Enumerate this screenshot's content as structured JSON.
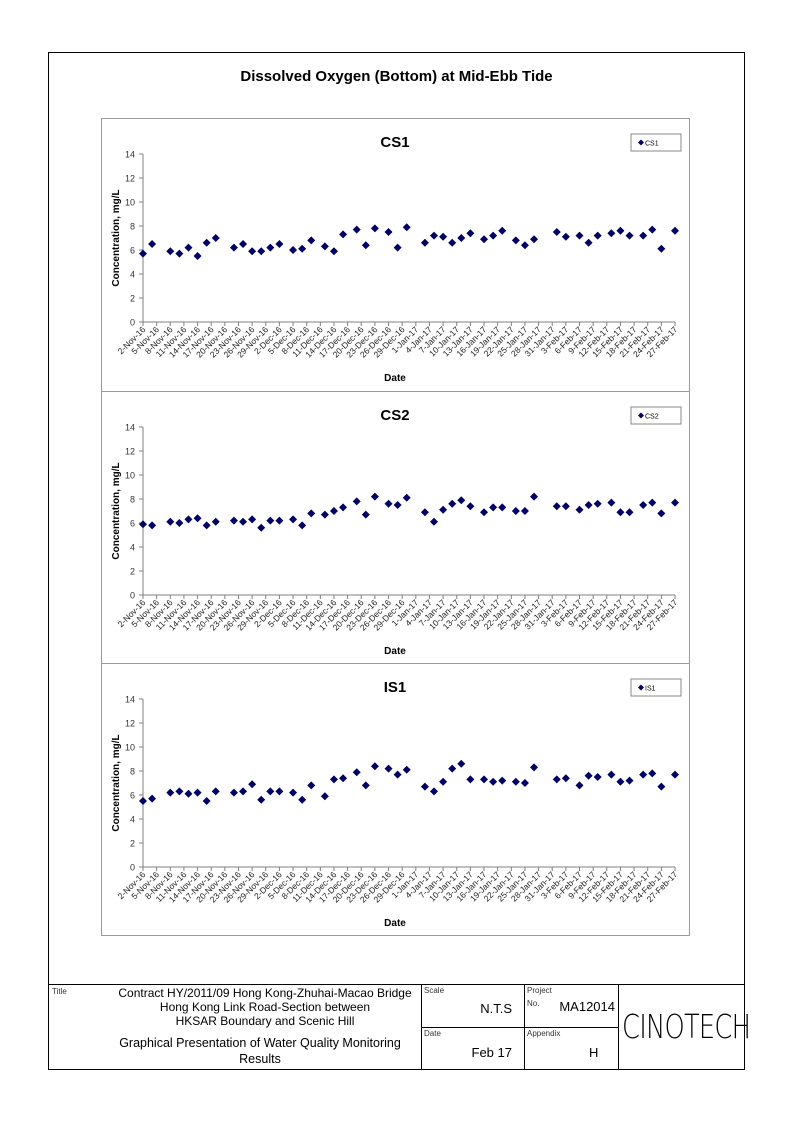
{
  "page_title": "Dissolved Oxygen (Bottom) at Mid-Ebb Tide",
  "chart_data": [
    {
      "type": "scatter",
      "title": "CS1",
      "legend": "CS1",
      "legend_position": "top-right",
      "xlabel": "Date",
      "ylabel": "Concentration, mg/L",
      "ylim": [
        0,
        14
      ],
      "yticks": [
        "0",
        "2",
        "4",
        "6",
        "8",
        "10",
        "12",
        "14"
      ],
      "color": "#000066",
      "values": [
        5.7,
        6.5,
        5.9,
        5.7,
        6.2,
        5.5,
        6.6,
        7.0,
        6.2,
        6.5,
        5.9,
        5.9,
        6.2,
        6.5,
        6.0,
        6.1,
        6.8,
        6.3,
        5.9,
        7.3,
        7.7,
        6.4,
        7.8,
        7.5,
        6.2,
        7.9,
        6.6,
        7.2,
        7.1,
        6.6,
        7.0,
        7.4,
        6.9,
        7.2,
        7.6,
        6.8,
        6.4,
        6.9,
        7.5,
        7.1,
        7.2,
        6.6,
        7.2,
        7.4,
        7.6,
        7.2,
        7.2,
        7.7,
        6.1,
        7.6
      ]
    },
    {
      "type": "scatter",
      "title": "CS2",
      "legend": "CS2",
      "legend_position": "top-right",
      "xlabel": "Date",
      "ylabel": "Concentration, mg/L",
      "ylim": [
        0,
        14
      ],
      "yticks": [
        "0",
        "2",
        "4",
        "6",
        "8",
        "10",
        "12",
        "14"
      ],
      "color": "#000066",
      "values": [
        5.9,
        5.8,
        6.1,
        6.0,
        6.3,
        6.4,
        5.8,
        6.1,
        6.2,
        6.1,
        6.3,
        5.6,
        6.2,
        6.2,
        6.3,
        5.8,
        6.8,
        6.7,
        7.0,
        7.3,
        7.8,
        6.7,
        8.2,
        7.6,
        7.5,
        8.1,
        6.9,
        6.1,
        7.1,
        7.6,
        7.9,
        7.4,
        6.9,
        7.3,
        7.3,
        7.0,
        7.0,
        8.2,
        7.4,
        7.4,
        7.1,
        7.5,
        7.6,
        7.7,
        6.9,
        6.9,
        7.5,
        7.7,
        6.8,
        7.7
      ]
    },
    {
      "type": "scatter",
      "title": "IS1",
      "legend": "IS1",
      "legend_position": "top-right",
      "xlabel": "Date",
      "ylabel": "Concentration, mg/L",
      "ylim": [
        0,
        14
      ],
      "yticks": [
        "0",
        "2",
        "4",
        "6",
        "8",
        "10",
        "12",
        "14"
      ],
      "color": "#000066",
      "values": [
        5.5,
        5.7,
        6.2,
        6.3,
        6.1,
        6.2,
        5.5,
        6.3,
        6.2,
        6.3,
        6.9,
        5.6,
        6.3,
        6.3,
        6.2,
        5.6,
        6.8,
        5.9,
        7.3,
        7.4,
        7.9,
        6.8,
        8.4,
        8.2,
        7.7,
        8.1,
        6.7,
        6.3,
        7.1,
        8.2,
        8.6,
        7.3,
        7.3,
        7.1,
        7.2,
        7.1,
        7.0,
        8.3,
        7.3,
        7.4,
        6.8,
        7.6,
        7.5,
        7.7,
        7.1,
        7.2,
        7.7,
        7.8,
        6.7,
        7.7
      ]
    }
  ],
  "x_dates": [
    "2-Nov-16",
    "4-Nov-16",
    "8-Nov-16",
    "10-Nov-16",
    "12-Nov-16",
    "14-Nov-16",
    "16-Nov-16",
    "18-Nov-16",
    "22-Nov-16",
    "24-Nov-16",
    "26-Nov-16",
    "28-Nov-16",
    "30-Nov-16",
    "2-Dec-16",
    "5-Dec-16",
    "7-Dec-16",
    "9-Dec-16",
    "12-Dec-16",
    "14-Dec-16",
    "16-Dec-16",
    "19-Dec-16",
    "21-Dec-16",
    "23-Dec-16",
    "26-Dec-16",
    "28-Dec-16",
    "30-Dec-16",
    "3-Jan-17",
    "5-Jan-17",
    "7-Jan-17",
    "9-Jan-17",
    "11-Jan-17",
    "13-Jan-17",
    "16-Jan-17",
    "18-Jan-17",
    "20-Jan-17",
    "23-Jan-17",
    "25-Jan-17",
    "27-Jan-17",
    "1-Feb-17",
    "3-Feb-17",
    "6-Feb-17",
    "8-Feb-17",
    "10-Feb-17",
    "13-Feb-17",
    "15-Feb-17",
    "17-Feb-17",
    "20-Feb-17",
    "22-Feb-17",
    "24-Feb-17",
    "27-Feb-17"
  ],
  "x_tick_labels": [
    "2-Nov-16",
    "5-Nov-16",
    "8-Nov-16",
    "11-Nov-16",
    "14-Nov-16",
    "17-Nov-16",
    "20-Nov-16",
    "23-Nov-16",
    "26-Nov-16",
    "29-Nov-16",
    "2-Dec-16",
    "5-Dec-16",
    "8-Dec-16",
    "11-Dec-16",
    "14-Dec-16",
    "17-Dec-16",
    "20-Dec-16",
    "23-Dec-16",
    "26-Dec-16",
    "29-Dec-16",
    "1-Jan-17",
    "4-Jan-17",
    "7-Jan-17",
    "10-Jan-17",
    "13-Jan-17",
    "16-Jan-17",
    "19-Jan-17",
    "22-Jan-17",
    "25-Jan-17",
    "28-Jan-17",
    "31-Jan-17",
    "3-Feb-17",
    "6-Feb-17",
    "9-Feb-17",
    "12-Feb-17",
    "15-Feb-17",
    "18-Feb-17",
    "21-Feb-17",
    "24-Feb-17",
    "27-Feb-17"
  ],
  "titleblock": {
    "title_label": "Title",
    "title_lines": [
      "Contract HY/2011/09 Hong Kong-Zhuhai-Macao Bridge",
      "Hong Kong Link Road-Section between",
      "HKSAR Boundary and Scenic Hill"
    ],
    "subtitle_lines": [
      "Graphical Presentation of Water Quality Monitoring",
      "Results"
    ],
    "scale_label": "Scale",
    "scale": "N.T.S",
    "project_label": "Project",
    "no_label": "No.",
    "project_no": "MA12014",
    "date_label": "Date",
    "date": "Feb 17",
    "appendix_label": "Appendix",
    "appendix": "H",
    "logo": "CINOTECH"
  }
}
